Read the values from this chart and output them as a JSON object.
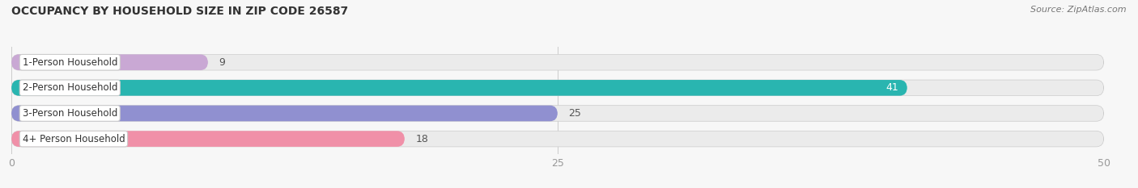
{
  "title": "OCCUPANCY BY HOUSEHOLD SIZE IN ZIP CODE 26587",
  "source": "Source: ZipAtlas.com",
  "categories": [
    "1-Person Household",
    "2-Person Household",
    "3-Person Household",
    "4+ Person Household"
  ],
  "values": [
    9,
    41,
    25,
    18
  ],
  "bar_colors": [
    "#c9a8d4",
    "#29b5b0",
    "#9090d0",
    "#f090a8"
  ],
  "bar_bg_color": "#ebebeb",
  "label_bg": "#ffffff",
  "label_border": "#cccccc",
  "xmax": 50,
  "xticks": [
    0,
    25,
    50
  ],
  "figsize": [
    14.06,
    2.33
  ],
  "dpi": 100,
  "bg_color": "#f7f7f7"
}
